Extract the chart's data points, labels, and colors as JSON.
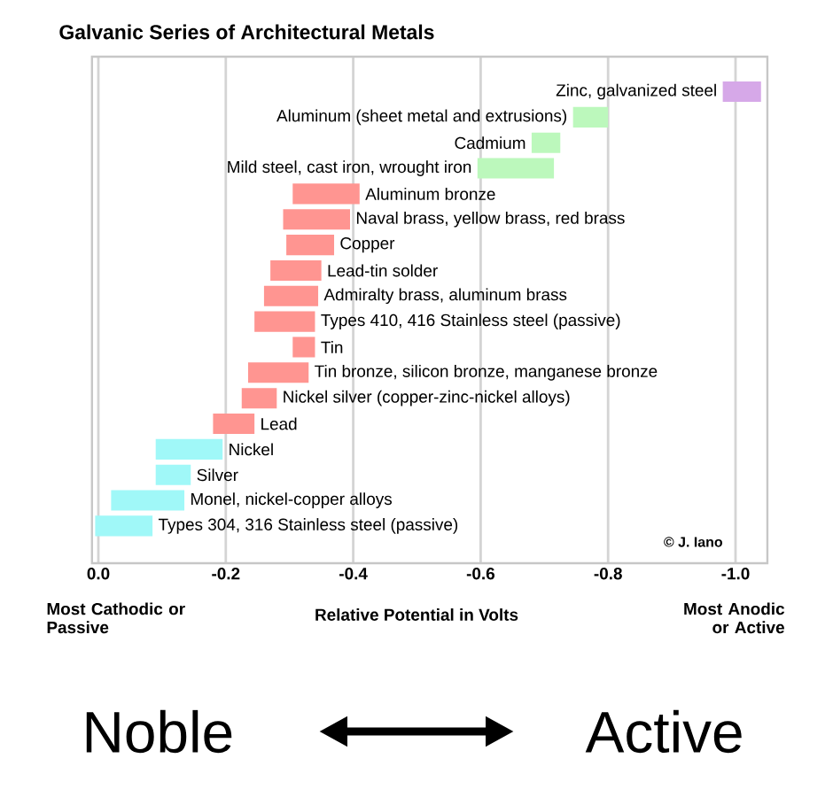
{
  "chart_data": {
    "type": "bar",
    "orientation": "horizontal",
    "title": "Galvanic Series of Architectural Metals",
    "xlabel": "Relative Potential in Volts",
    "categories": [
      "Zinc, galvanized steel",
      "Aluminum (sheet metal and extrusions)",
      "Cadmium",
      "Mild steel, cast iron, wrought iron",
      "Aluminum bronze",
      "Naval brass, yellow brass, red brass",
      "Copper",
      "Lead-tin solder",
      "Admiralty brass, aluminum brass",
      "Types 410, 416 Stainless steel (passive)",
      "Tin",
      "Tin bronze, silicon bronze, manganese bronze",
      "Nickel silver (copper-zinc-nickel alloys)",
      "Lead",
      "Nickel",
      "Silver",
      "Monel, nickel-copper alloys",
      "Types 304, 316 Stainless steel (passive)"
    ],
    "base": [
      -0.98,
      -0.745,
      -0.68,
      -0.595,
      -0.305,
      -0.29,
      -0.295,
      -0.27,
      -0.26,
      -0.245,
      -0.305,
      -0.235,
      -0.225,
      -0.18,
      -0.09,
      -0.09,
      -0.02,
      0.005
    ],
    "values": [
      -0.06,
      -0.055,
      -0.045,
      -0.12,
      -0.105,
      -0.105,
      -0.075,
      -0.08,
      -0.085,
      -0.095,
      -0.035,
      -0.095,
      -0.055,
      -0.065,
      -0.105,
      -0.055,
      -0.115,
      -0.09
    ],
    "colors": [
      "#d6a8e8",
      "#bcf8bc",
      "#bcf8bc",
      "#bcf8bc",
      "#ff9591",
      "#ff9591",
      "#ff9591",
      "#ff9591",
      "#ff9591",
      "#ff9591",
      "#ff9591",
      "#ff9591",
      "#ff9591",
      "#ff9591",
      "#a0f8f8",
      "#a0f8f8",
      "#a0f8f8",
      "#a0f8f8"
    ],
    "xlim": [
      0.01,
      -1.05
    ],
    "xticks": [
      {
        "value": 0,
        "label": "0.0"
      },
      {
        "value": -0.2,
        "label": "-0.2"
      },
      {
        "value": -0.4,
        "label": "-0.4"
      },
      {
        "value": -0.6,
        "label": "-0.6"
      },
      {
        "value": -0.8,
        "label": "-0.8"
      },
      {
        "value": -1.0,
        "label": "-1.0"
      }
    ],
    "grid": "x",
    "annotations": [
      "© J. Iano",
      "Most Cathodic or Passive",
      "Most Anodic or Active",
      "Noble",
      "Active"
    ]
  }
}
